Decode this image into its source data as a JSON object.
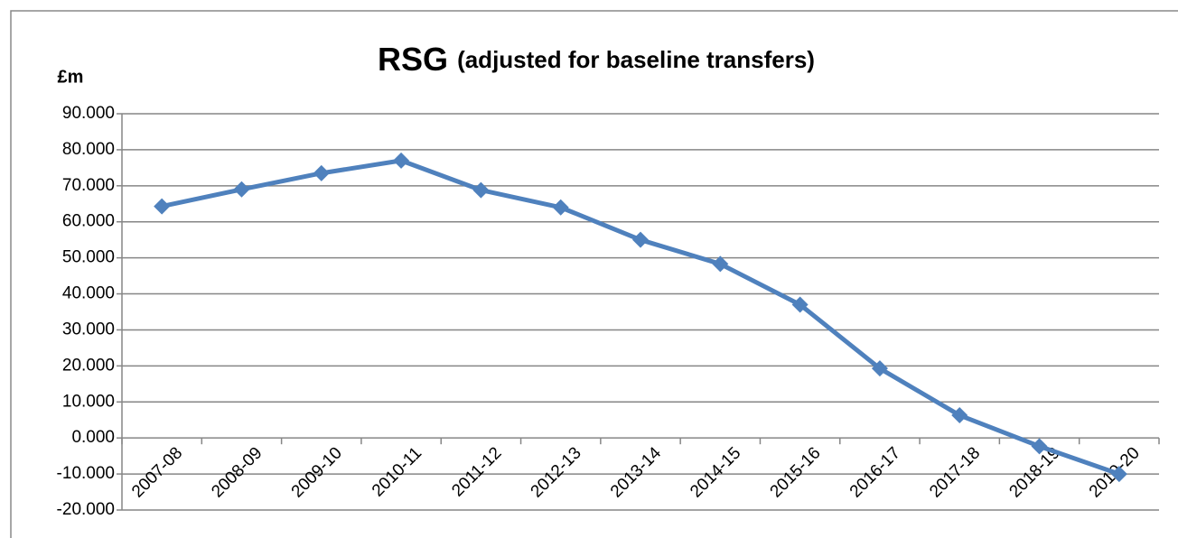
{
  "chart_data": {
    "type": "line",
    "title": "RSG",
    "subtitle": "(adjusted for baseline transfers)",
    "y_label": "£m",
    "categories": [
      "2007-08",
      "2008-09",
      "2009-10",
      "2010-11",
      "2011-12",
      "2012-13",
      "2013-14",
      "2014-15",
      "2015-16",
      "2016-17",
      "2017-18",
      "2018-19",
      "2019-20"
    ],
    "series": [
      {
        "name": "RSG",
        "color": "#4f81bd",
        "values": [
          64.3,
          69.0,
          73.5,
          77.0,
          68.8,
          64.0,
          55.0,
          48.3,
          37.0,
          19.3,
          6.3,
          -2.3,
          -10.0
        ]
      }
    ],
    "ylim": [
      -20,
      90
    ],
    "yticks": [
      {
        "value": -20,
        "label": "-20.000"
      },
      {
        "value": -10,
        "label": "-10.000"
      },
      {
        "value": 0,
        "label": "0.000"
      },
      {
        "value": 10,
        "label": "10.000"
      },
      {
        "value": 20,
        "label": "20.000"
      },
      {
        "value": 30,
        "label": "30.000"
      },
      {
        "value": 40,
        "label": "40.000"
      },
      {
        "value": 50,
        "label": "50.000"
      },
      {
        "value": 60,
        "label": "60.000"
      },
      {
        "value": 70,
        "label": "70.000"
      },
      {
        "value": 80,
        "label": "80.000"
      },
      {
        "value": 90,
        "label": "90.000"
      }
    ],
    "grid": true
  }
}
